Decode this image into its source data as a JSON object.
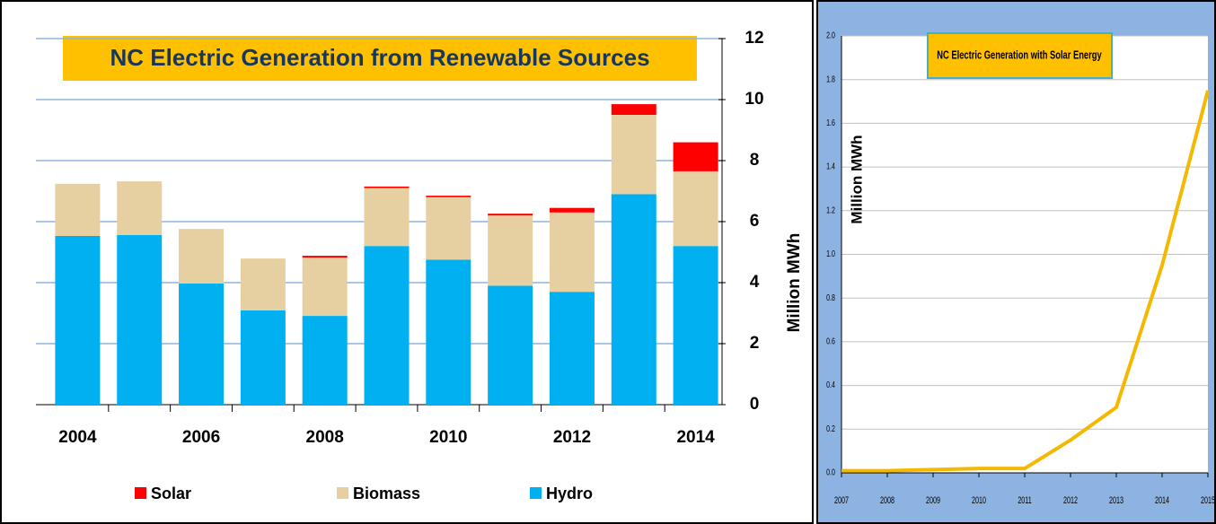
{
  "chart_data": [
    {
      "type": "bar",
      "stacked": true,
      "title": "NC Electric Generation from Renewable Sources",
      "categories": [
        "2004",
        null,
        "2006",
        null,
        "2008",
        null,
        "2010",
        null,
        "2012",
        null,
        "2014"
      ],
      "series": [
        {
          "name": "Hydro",
          "color": "#00b0f0",
          "values": [
            5.53,
            5.56,
            3.97,
            3.09,
            2.91,
            5.2,
            4.75,
            3.9,
            3.7,
            6.9,
            5.2
          ]
        },
        {
          "name": "Biomass",
          "color": "#e6cfa0",
          "values": [
            1.71,
            1.76,
            1.79,
            1.7,
            1.91,
            1.9,
            2.05,
            2.3,
            2.6,
            2.6,
            2.45
          ]
        },
        {
          "name": "Solar",
          "color": "#ff0000",
          "values": [
            0,
            0,
            0,
            0,
            0.06,
            0.05,
            0.05,
            0.06,
            0.15,
            0.35,
            0.95
          ]
        }
      ],
      "ylabel": "Million MWh",
      "ylim": [
        0,
        12
      ],
      "yticks": [
        0,
        2,
        4,
        6,
        8,
        10,
        12
      ],
      "grid": true
    },
    {
      "type": "line",
      "title": "NC Electric Generation with Solar Energy",
      "ylabel": "Million MWh",
      "x": [
        2007,
        2008,
        2009,
        2010,
        2011,
        2012,
        2013,
        2014,
        2015
      ],
      "values": [
        0.01,
        0.01,
        0.015,
        0.02,
        0.02,
        0.15,
        0.3,
        0.95,
        1.75
      ],
      "color": "#f5b800",
      "xlim": [
        2007,
        2015
      ],
      "xticks": [
        2007,
        2008,
        2009,
        2010,
        2011,
        2012,
        2013,
        2014,
        2015
      ],
      "ylim": [
        0,
        2
      ],
      "yticks": [
        {
          "value": 0,
          "label": "0.0"
        },
        0.2,
        0.4,
        0.6,
        0.8,
        {
          "value": 1,
          "label": "1.0"
        },
        1.2,
        1.4,
        1.6,
        1.8,
        {
          "value": 2,
          "label": "2.0"
        }
      ],
      "grid": true
    }
  ]
}
